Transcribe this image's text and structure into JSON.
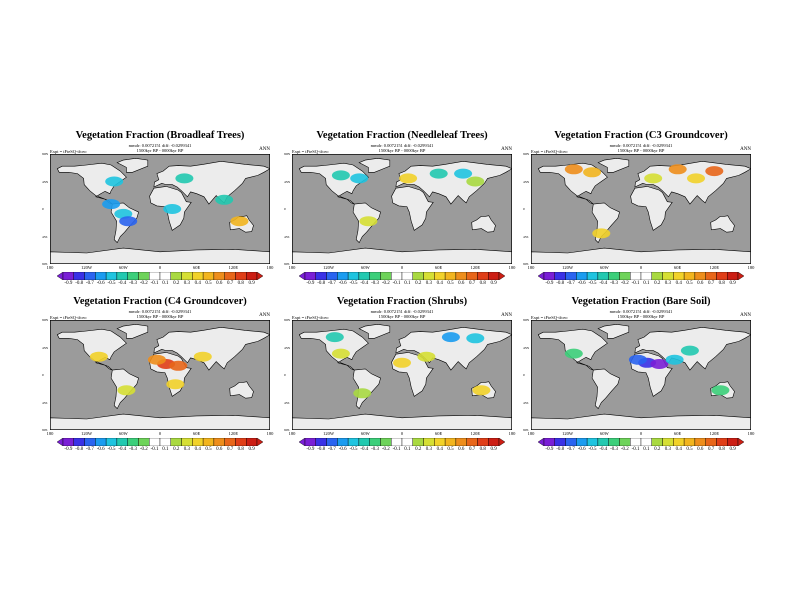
{
  "common": {
    "season": "ANN",
    "expt": "Expt = tFteSQ-tfceo",
    "period": "1500kyr BP - 0000kyr BP",
    "lon_ticks": [
      "180",
      "120W",
      "60W",
      "0",
      "60E",
      "120E",
      "180"
    ],
    "lat_ticks": [
      "90N",
      "45N",
      "0",
      "45S",
      "90S"
    ]
  },
  "colors": {
    "ocean": "#9b9b9b",
    "land": "#ececec",
    "palette": [
      "#7a1fd6",
      "#3a31e6",
      "#2a64f0",
      "#1b9cf0",
      "#1fc4e0",
      "#22c9b0",
      "#3ccf7a",
      "#6ed35a",
      "#ffffff",
      "#ffffff",
      "#a9d941",
      "#d6df34",
      "#f2d22a",
      "#f2b51f",
      "#ee8e1c",
      "#e8661a",
      "#e03e18",
      "#cc1e14"
    ]
  },
  "panels": [
    {
      "title": "Vegetation Fraction (Broadleaf Trees)",
      "stats": "mmdr: 0.0072151 diff: -0.0299341",
      "cbar_labels": [
        "-0.9",
        "-0.8",
        "-0.7",
        "-0.6",
        "-0.5",
        "-0.4",
        "-0.3",
        "-0.2",
        "-0.1",
        "0.1",
        "0.2",
        "0.3",
        "0.4",
        "0.5",
        "0.6",
        "0.7",
        "0.8",
        "0.9"
      ],
      "features": [
        {
          "lon": -60,
          "lat": -8,
          "cls": 4
        },
        {
          "lon": -52,
          "lat": -20,
          "cls": 2
        },
        {
          "lon": -80,
          "lat": 8,
          "cls": 3
        },
        {
          "lon": 20,
          "lat": 0,
          "cls": 4
        },
        {
          "lon": 105,
          "lat": 15,
          "cls": 5
        },
        {
          "lon": 130,
          "lat": -20,
          "cls": 13
        },
        {
          "lon": 40,
          "lat": 50,
          "cls": 5
        },
        {
          "lon": -75,
          "lat": 45,
          "cls": 4
        }
      ]
    },
    {
      "title": "Vegetation Fraction (Needleleaf Trees)",
      "stats": "mmdr: 0.0072151 diff: -0.0299341",
      "cbar_labels": [
        "-0.9",
        "-0.8",
        "-0.7",
        "-0.6",
        "-0.5",
        "-0.4",
        "-0.3",
        "-0.2",
        "-0.1",
        "0.1",
        "0.2",
        "0.3",
        "0.4",
        "0.5",
        "0.6",
        "0.7",
        "0.8",
        "0.9"
      ],
      "features": [
        {
          "lon": -100,
          "lat": 55,
          "cls": 5
        },
        {
          "lon": -70,
          "lat": 50,
          "cls": 4
        },
        {
          "lon": 60,
          "lat": 58,
          "cls": 5
        },
        {
          "lon": 100,
          "lat": 58,
          "cls": 4
        },
        {
          "lon": 120,
          "lat": 45,
          "cls": 10
        },
        {
          "lon": -55,
          "lat": -20,
          "cls": 11
        },
        {
          "lon": 10,
          "lat": 50,
          "cls": 12
        }
      ]
    },
    {
      "title": "Vegetation Fraction (C3 Groundcover)",
      "stats": "mmdr: 0.0072151 diff: -0.0299341",
      "cbar_labels": [
        "-0.9",
        "-0.8",
        "-0.7",
        "-0.6",
        "-0.5",
        "-0.4",
        "-0.3",
        "-0.2",
        "-0.1",
        "0.1",
        "0.2",
        "0.3",
        "0.4",
        "0.5",
        "0.6",
        "0.7",
        "0.8",
        "0.9"
      ],
      "features": [
        {
          "lon": -110,
          "lat": 65,
          "cls": 14
        },
        {
          "lon": -80,
          "lat": 60,
          "cls": 13
        },
        {
          "lon": 60,
          "lat": 65,
          "cls": 14
        },
        {
          "lon": 120,
          "lat": 62,
          "cls": 15
        },
        {
          "lon": 90,
          "lat": 50,
          "cls": 12
        },
        {
          "lon": -65,
          "lat": -40,
          "cls": 12
        },
        {
          "lon": 20,
          "lat": 50,
          "cls": 11
        }
      ]
    },
    {
      "title": "Vegetation Fraction (C4 Groundcover)",
      "stats": "mmdr: 0.0072151 diff: -0.0299341",
      "cbar_labels": [
        "-0.9",
        "-0.8",
        "-0.7",
        "-0.6",
        "-0.5",
        "-0.4",
        "-0.3",
        "-0.2",
        "-0.1",
        "0.1",
        "0.2",
        "0.3",
        "0.4",
        "0.5",
        "0.6",
        "0.7",
        "0.8",
        "0.9"
      ],
      "features": [
        {
          "lon": 10,
          "lat": 18,
          "cls": 16
        },
        {
          "lon": 30,
          "lat": 15,
          "cls": 15
        },
        {
          "lon": -5,
          "lat": 25,
          "cls": 14
        },
        {
          "lon": 70,
          "lat": 30,
          "cls": 12
        },
        {
          "lon": -100,
          "lat": 30,
          "cls": 12
        },
        {
          "lon": 25,
          "lat": -15,
          "cls": 12
        },
        {
          "lon": -55,
          "lat": -25,
          "cls": 11
        }
      ]
    },
    {
      "title": "Vegetation Fraction (Shrubs)",
      "stats": "mmdr: 0.0072151 diff: -0.0299341",
      "cbar_labels": [
        "-0.9",
        "-0.8",
        "-0.7",
        "-0.6",
        "-0.5",
        "-0.4",
        "-0.3",
        "-0.2",
        "-0.1",
        "0.1",
        "0.2",
        "0.3",
        "0.4",
        "0.5",
        "0.6",
        "0.7",
        "0.8",
        "0.9"
      ],
      "features": [
        {
          "lon": -110,
          "lat": 62,
          "cls": 5
        },
        {
          "lon": 80,
          "lat": 62,
          "cls": 3
        },
        {
          "lon": 120,
          "lat": 60,
          "cls": 4
        },
        {
          "lon": 0,
          "lat": 20,
          "cls": 12
        },
        {
          "lon": 40,
          "lat": 30,
          "cls": 11
        },
        {
          "lon": 130,
          "lat": -25,
          "cls": 12
        },
        {
          "lon": -65,
          "lat": -30,
          "cls": 10
        },
        {
          "lon": -100,
          "lat": 35,
          "cls": 11
        }
      ]
    },
    {
      "title": "Vegetation Fraction (Bare Soil)",
      "stats": "mmdr: 0.0072151 diff: -0.0299341",
      "cbar_labels": [
        "-0.9",
        "-0.8",
        "-0.7",
        "-0.6",
        "-0.5",
        "-0.4",
        "-0.3",
        "-0.2",
        "-0.1",
        "0.1",
        "0.2",
        "0.3",
        "0.4",
        "0.5",
        "0.6",
        "0.7",
        "0.8",
        "0.9"
      ],
      "features": [
        {
          "lon": 10,
          "lat": 20,
          "cls": 1
        },
        {
          "lon": 30,
          "lat": 18,
          "cls": 0
        },
        {
          "lon": -5,
          "lat": 25,
          "cls": 2
        },
        {
          "lon": 55,
          "lat": 25,
          "cls": 4
        },
        {
          "lon": 80,
          "lat": 40,
          "cls": 5
        },
        {
          "lon": -110,
          "lat": 35,
          "cls": 6
        },
        {
          "lon": 130,
          "lat": -25,
          "cls": 6
        }
      ]
    }
  ]
}
